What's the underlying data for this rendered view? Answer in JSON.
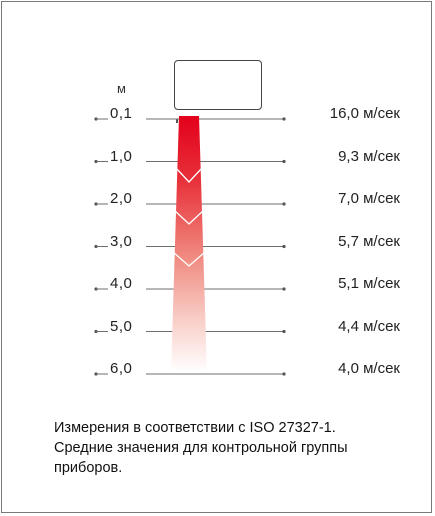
{
  "unit": "м",
  "rows": [
    {
      "distance": "0,1",
      "speed": "16,0 м/сек"
    },
    {
      "distance": "1,0",
      "speed": "9,3 м/сек"
    },
    {
      "distance": "2,0",
      "speed": "7,0 м/сек"
    },
    {
      "distance": "3,0",
      "speed": "5,7 м/сек"
    },
    {
      "distance": "4,0",
      "speed": "5,1 м/сек"
    },
    {
      "distance": "5,0",
      "speed": "4,4 м/сек"
    },
    {
      "distance": "6,0",
      "speed": "4,0 м/сек"
    }
  ],
  "caption": {
    "line1": "Измерения в соответствии с ISO 27327-1.",
    "line2": "Средние значения для контрольной группы",
    "line3": "приборов."
  },
  "colors": {
    "beam_top": "#e3001b",
    "beam_bottom": "#ffffff",
    "lines": "#6f6f6f",
    "frame": "#7a7a7a"
  }
}
